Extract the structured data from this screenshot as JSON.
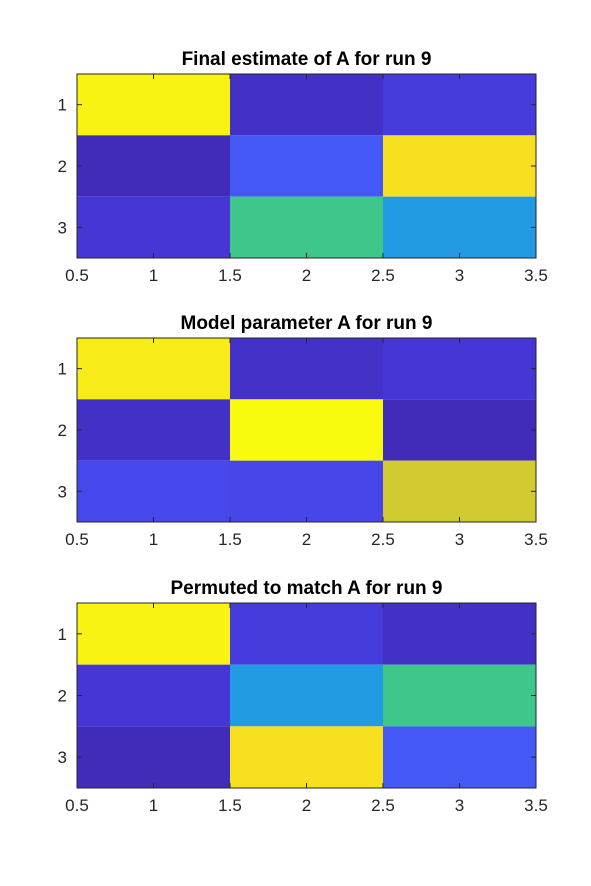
{
  "chart_data": [
    {
      "type": "heatmap",
      "title": "Final estimate of A for run 9",
      "x_ticks": [
        "0.5",
        "1",
        "1.5",
        "2",
        "2.5",
        "3",
        "3.5"
      ],
      "y_ticks": [
        "1",
        "2",
        "3"
      ],
      "xlim": [
        0.5,
        3.5
      ],
      "ylim": [
        0.5,
        3.5
      ],
      "colormap": "parula",
      "values": [
        [
          0.98,
          0.06,
          0.12
        ],
        [
          0.04,
          0.22,
          0.93
        ],
        [
          0.1,
          0.66,
          0.42
        ]
      ]
    },
    {
      "type": "heatmap",
      "title": "Model parameter A for run 9",
      "x_ticks": [
        "0.5",
        "1",
        "1.5",
        "2",
        "2.5",
        "3",
        "3.5"
      ],
      "y_ticks": [
        "1",
        "2",
        "3"
      ],
      "xlim": [
        0.5,
        3.5
      ],
      "ylim": [
        0.5,
        3.5
      ],
      "colormap": "parula",
      "values": [
        [
          0.96,
          0.07,
          0.1
        ],
        [
          0.06,
          1.0,
          0.04
        ],
        [
          0.17,
          0.16,
          0.84
        ]
      ]
    },
    {
      "type": "heatmap",
      "title": "Permuted to match A for run 9",
      "x_ticks": [
        "0.5",
        "1",
        "1.5",
        "2",
        "2.5",
        "3",
        "3.5"
      ],
      "y_ticks": [
        "1",
        "2",
        "3"
      ],
      "xlim": [
        0.5,
        3.5
      ],
      "ylim": [
        0.5,
        3.5
      ],
      "colormap": "parula",
      "values": [
        [
          0.98,
          0.12,
          0.06
        ],
        [
          0.1,
          0.42,
          0.66
        ],
        [
          0.04,
          0.93,
          0.22
        ]
      ]
    }
  ]
}
